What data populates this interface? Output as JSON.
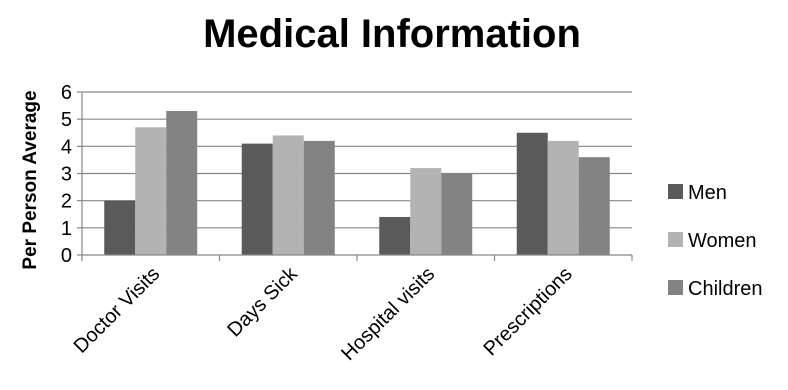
{
  "chart_data": {
    "type": "bar",
    "title": "Medical Information",
    "ylabel": "Per Person Average",
    "xlabel": "",
    "ylim": [
      0,
      6
    ],
    "yticks": [
      0,
      1,
      2,
      3,
      4,
      5,
      6
    ],
    "grid": true,
    "legend_position": "right",
    "categories": [
      "Doctor Visits",
      "Days Sick",
      "Hospital visits",
      "Prescriptions"
    ],
    "series": [
      {
        "name": "Men",
        "values": [
          2.0,
          4.1,
          1.4,
          4.5
        ],
        "color": "#5a5a5a"
      },
      {
        "name": "Women",
        "values": [
          4.7,
          4.4,
          3.2,
          4.2
        ],
        "color": "#b3b3b3"
      },
      {
        "name": "Children",
        "values": [
          5.3,
          4.2,
          3.0,
          3.6
        ],
        "color": "#838383"
      }
    ]
  }
}
